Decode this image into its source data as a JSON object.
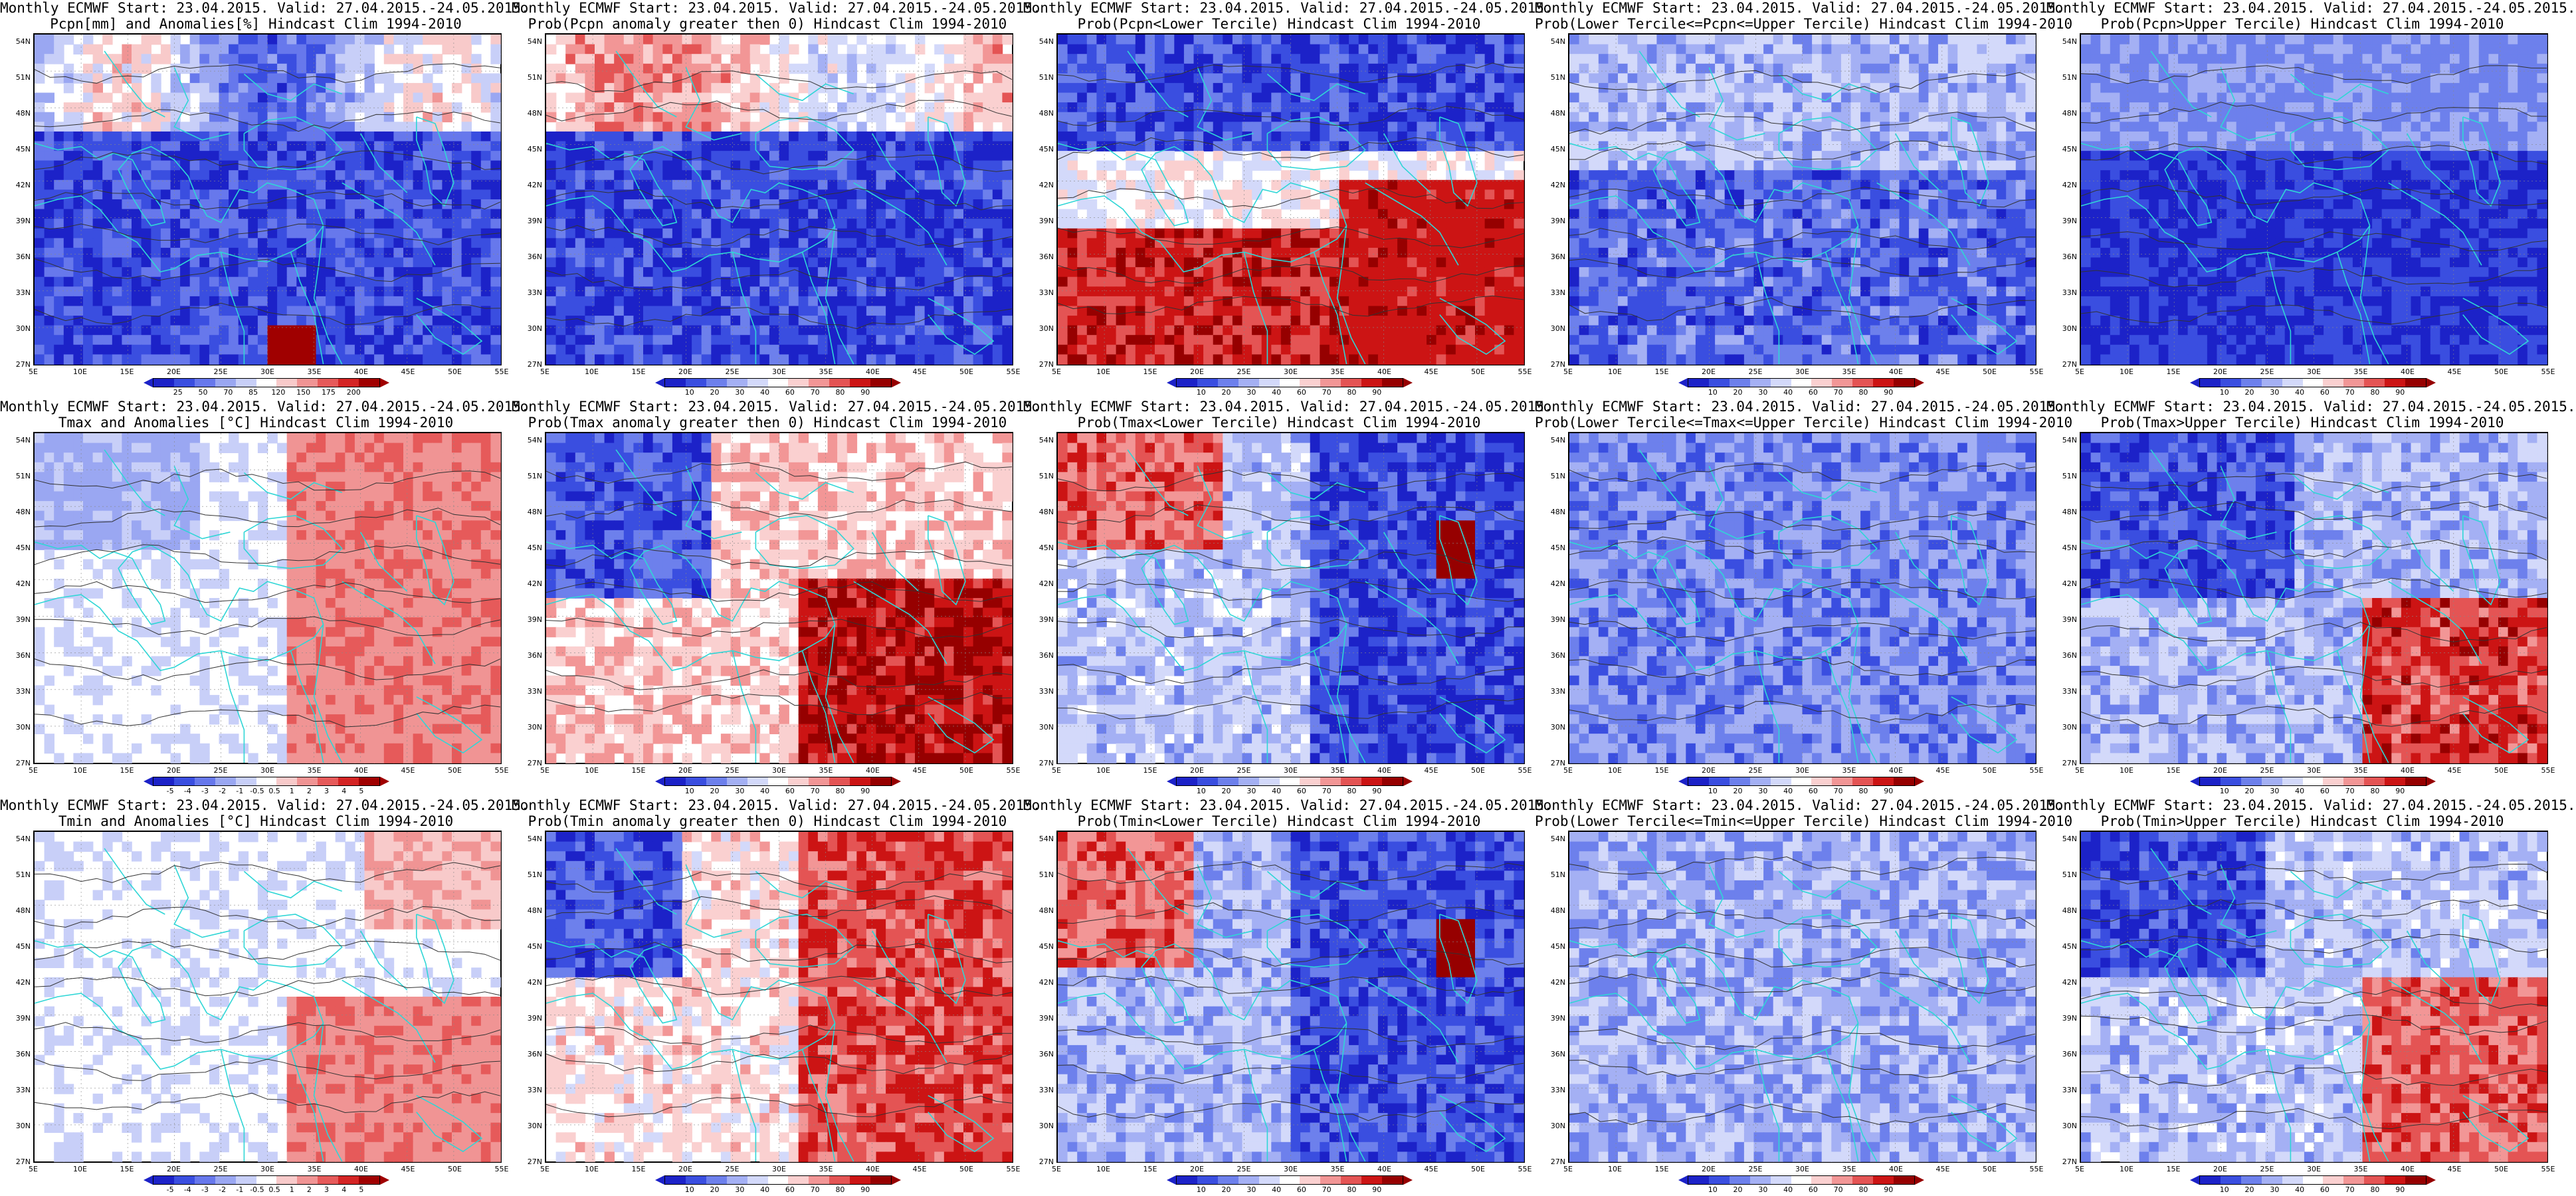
{
  "x_ticks": [
    "5E",
    "10E",
    "15E",
    "20E",
    "25E",
    "30E",
    "35E",
    "40E",
    "45E",
    "50E",
    "55E"
  ],
  "y_ticks": [
    "54N",
    "51N",
    "48N",
    "45N",
    "42N",
    "39N",
    "36N",
    "33N",
    "30N",
    "27N"
  ],
  "colors": {
    "coast": "#2fd6d6",
    "contour": "#333333",
    "anom_scale": [
      "#1c22c8",
      "#3a4ee0",
      "#6778ec",
      "#9aa7f2",
      "#c8cff8",
      "#ffffff",
      "#f8caca",
      "#f09494",
      "#e65a5a",
      "#d42424",
      "#a00000"
    ],
    "prob_scale": [
      "#1c22c8",
      "#3a4ee0",
      "#6d80ec",
      "#a4b0f4",
      "#d3d9fa",
      "#ffffff",
      "#fad0d0",
      "#f29696",
      "#e45454",
      "#cc1414",
      "#960000"
    ]
  },
  "panels": [
    {
      "id": "pcpn-anom",
      "title1": "Monthly ECMWF Start: 23.04.2015. Valid: 27.04.2015.-24.05.2015.",
      "title2": "Pcpn[mm] and Anomalies[%] Hindcast Clim 1994-2010",
      "scale": "anom",
      "cb_labels": [
        "25",
        "50",
        "70",
        "85",
        "120",
        "150",
        "175",
        "200"
      ],
      "pattern": "precip_anom"
    },
    {
      "id": "pcpn-prob-gt0",
      "title1": "Monthly ECMWF Start: 23.04.2015. Valid: 27.04.2015.-24.05.2015.",
      "title2": "Prob(Pcpn anomaly greater then 0) Hindcast Clim 1994-2010",
      "scale": "prob",
      "cb_labels": [
        "10",
        "20",
        "30",
        "40",
        "60",
        "70",
        "80",
        "90"
      ],
      "pattern": "precip_gt0"
    },
    {
      "id": "pcpn-prob-lower",
      "title1": "Monthly ECMWF Start: 23.04.2015. Valid: 27.04.2015.-24.05.2015.",
      "title2": "Prob(Pcpn<Lower Tercile) Hindcast Clim 1994-2010",
      "scale": "prob",
      "cb_labels": [
        "10",
        "20",
        "30",
        "40",
        "60",
        "70",
        "80",
        "90"
      ],
      "pattern": "precip_lower"
    },
    {
      "id": "pcpn-prob-middle",
      "title1": "Monthly ECMWF Start: 23.04.2015. Valid: 27.04.2015.-24.05.2015.",
      "title2": "Prob(Lower Tercile<=Pcpn<=Upper Tercile) Hindcast Clim 1994-2010",
      "scale": "prob",
      "cb_labels": [
        "10",
        "20",
        "30",
        "40",
        "60",
        "70",
        "80",
        "90"
      ],
      "pattern": "precip_middle"
    },
    {
      "id": "pcpn-prob-upper",
      "title1": "Monthly ECMWF Start: 23.04.2015. Valid: 27.04.2015.-24.05.2015.",
      "title2": "Prob(Pcpn>Upper Tercile) Hindcast Clim 1994-2010",
      "scale": "prob",
      "cb_labels": [
        "10",
        "20",
        "30",
        "40",
        "60",
        "70",
        "80",
        "90"
      ],
      "pattern": "precip_upper"
    },
    {
      "id": "tmax-anom",
      "title1": "Monthly ECMWF Start: 23.04.2015. Valid: 27.04.2015.-24.05.2015.",
      "title2": "Tmax and Anomalies [°C] Hindcast Clim 1994-2010",
      "scale": "anom",
      "cb_labels": [
        "-5",
        "-4",
        "-3",
        "-2",
        "-1",
        "-0.5",
        "0.5",
        "1",
        "2",
        "3",
        "4",
        "5"
      ],
      "pattern": "tmax_anom"
    },
    {
      "id": "tmax-prob-gt0",
      "title1": "Monthly ECMWF Start: 23.04.2015. Valid: 27.04.2015.-24.05.2015.",
      "title2": "Prob(Tmax anomaly greater then 0) Hindcast Clim 1994-2010",
      "scale": "prob",
      "cb_labels": [
        "10",
        "20",
        "30",
        "40",
        "60",
        "70",
        "80",
        "90"
      ],
      "pattern": "tmax_gt0"
    },
    {
      "id": "tmax-prob-lower",
      "title1": "Monthly ECMWF Start: 23.04.2015. Valid: 27.04.2015.-24.05.2015.",
      "title2": "Prob(Tmax<Lower Tercile) Hindcast Clim 1994-2010",
      "scale": "prob",
      "cb_labels": [
        "10",
        "20",
        "30",
        "40",
        "60",
        "70",
        "80",
        "90"
      ],
      "pattern": "tmax_lower"
    },
    {
      "id": "tmax-prob-middle",
      "title1": "Monthly ECMWF Start: 23.04.2015. Valid: 27.04.2015.-24.05.2015.",
      "title2": "Prob(Lower Tercile<=Tmax<=Upper Tercile) Hindcast Clim 1994-2010",
      "scale": "prob",
      "cb_labels": [
        "10",
        "20",
        "30",
        "40",
        "60",
        "70",
        "80",
        "90"
      ],
      "pattern": "tmax_middle"
    },
    {
      "id": "tmax-prob-upper",
      "title1": "Monthly ECMWF Start: 23.04.2015. Valid: 27.04.2015.-24.05.2015.",
      "title2": "Prob(Tmax>Upper Tercile) Hindcast Clim 1994-2010",
      "scale": "prob",
      "cb_labels": [
        "10",
        "20",
        "30",
        "40",
        "60",
        "70",
        "80",
        "90"
      ],
      "pattern": "tmax_upper"
    },
    {
      "id": "tmin-anom",
      "title1": "Monthly ECMWF Start: 23.04.2015. Valid: 27.04.2015.-24.05.2015.",
      "title2": "Tmin and Anomalies [°C] Hindcast Clim 1994-2010",
      "scale": "anom",
      "cb_labels": [
        "-5",
        "-4",
        "-3",
        "-2",
        "-1",
        "-0.5",
        "0.5",
        "1",
        "2",
        "3",
        "4",
        "5"
      ],
      "pattern": "tmin_anom"
    },
    {
      "id": "tmin-prob-gt0",
      "title1": "Monthly ECMWF Start: 23.04.2015. Valid: 27.04.2015.-24.05.2015.",
      "title2": "Prob(Tmin anomaly greater then 0) Hindcast Clim 1994-2010",
      "scale": "prob",
      "cb_labels": [
        "10",
        "20",
        "30",
        "40",
        "60",
        "70",
        "80",
        "90"
      ],
      "pattern": "tmin_gt0"
    },
    {
      "id": "tmin-prob-lower",
      "title1": "Monthly ECMWF Start: 23.04.2015. Valid: 27.04.2015.-24.05.2015.",
      "title2": "Prob(Tmin<Lower Tercile) Hindcast Clim 1994-2010",
      "scale": "prob",
      "cb_labels": [
        "10",
        "20",
        "30",
        "40",
        "60",
        "70",
        "80",
        "90"
      ],
      "pattern": "tmin_lower"
    },
    {
      "id": "tmin-prob-middle",
      "title1": "Monthly ECMWF Start: 23.04.2015. Valid: 27.04.2015.-24.05.2015.",
      "title2": "Prob(Lower Tercile<=Tmin<=Upper Tercile) Hindcast Clim 1994-2010",
      "scale": "prob",
      "cb_labels": [
        "10",
        "20",
        "30",
        "40",
        "60",
        "70",
        "80",
        "90"
      ],
      "pattern": "tmin_middle"
    },
    {
      "id": "tmin-prob-upper",
      "title1": "Monthly ECMWF Start: 23.04.2015. Valid: 27.04.2015.-24.05.2015.",
      "title2": "Prob(Tmin>Upper Tercile) Hindcast Clim 1994-2010",
      "scale": "prob",
      "cb_labels": [
        "10",
        "20",
        "30",
        "40",
        "60",
        "70",
        "80",
        "90"
      ],
      "pattern": "tmin_upper"
    }
  ]
}
